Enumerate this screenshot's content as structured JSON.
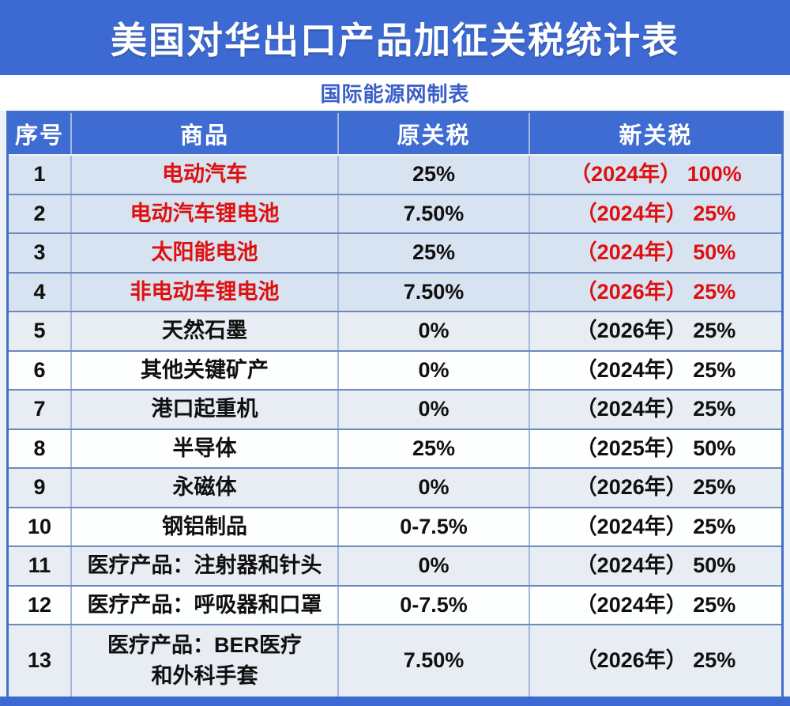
{
  "page": {
    "title": "美国对华出口产品加征关税统计表",
    "subtitle": "国际能源网制表"
  },
  "chart_data": {
    "type": "table",
    "columns": {
      "no": "序号",
      "product": "商品",
      "old": "原关税",
      "new": "新关税"
    },
    "red_highlight_rows": [
      1,
      2,
      3,
      4
    ],
    "rows": [
      {
        "no": "1",
        "product": "电动汽车",
        "old": "25%",
        "new": "（2024年） 100%"
      },
      {
        "no": "2",
        "product": "电动汽车锂电池",
        "old": "7.50%",
        "new": "（2024年） 25%"
      },
      {
        "no": "3",
        "product": "太阳能电池",
        "old": "25%",
        "new": "（2024年） 50%"
      },
      {
        "no": "4",
        "product": "非电动车锂电池",
        "old": "7.50%",
        "new": "（2026年） 25%"
      },
      {
        "no": "5",
        "product": "天然石墨",
        "old": "0%",
        "new": "（2026年） 25%"
      },
      {
        "no": "6",
        "product": "其他关键矿产",
        "old": "0%",
        "new": "（2024年） 25%"
      },
      {
        "no": "7",
        "product": "港口起重机",
        "old": "0%",
        "new": "（2024年） 25%"
      },
      {
        "no": "8",
        "product": "半导体",
        "old": "25%",
        "new": "（2025年） 50%"
      },
      {
        "no": "9",
        "product": "永磁体",
        "old": "0%",
        "new": "（2026年） 25%"
      },
      {
        "no": "10",
        "product": "钢铝制品",
        "old": "0-7.5%",
        "new": "（2024年） 25%"
      },
      {
        "no": "11",
        "product": "医疗产品：注射器和针头",
        "old": "0%",
        "new": "（2024年） 50%"
      },
      {
        "no": "12",
        "product": "医疗产品：呼吸器和口罩",
        "old": "0-7.5%",
        "new": "（2024年） 25%"
      },
      {
        "no": "13",
        "product": "医疗产品：BER医疗\n和外科手套",
        "old": "7.50%",
        "new": "（2026年） 25%"
      }
    ]
  },
  "colors": {
    "banner_blue": "#3d6ad2",
    "accent_red": "#de1010",
    "band_highlight": "#d8e3f1",
    "band_light": "#e8ecf3",
    "band_white": "#fdfefe",
    "subtitle_blue": "#3a5fc8"
  }
}
